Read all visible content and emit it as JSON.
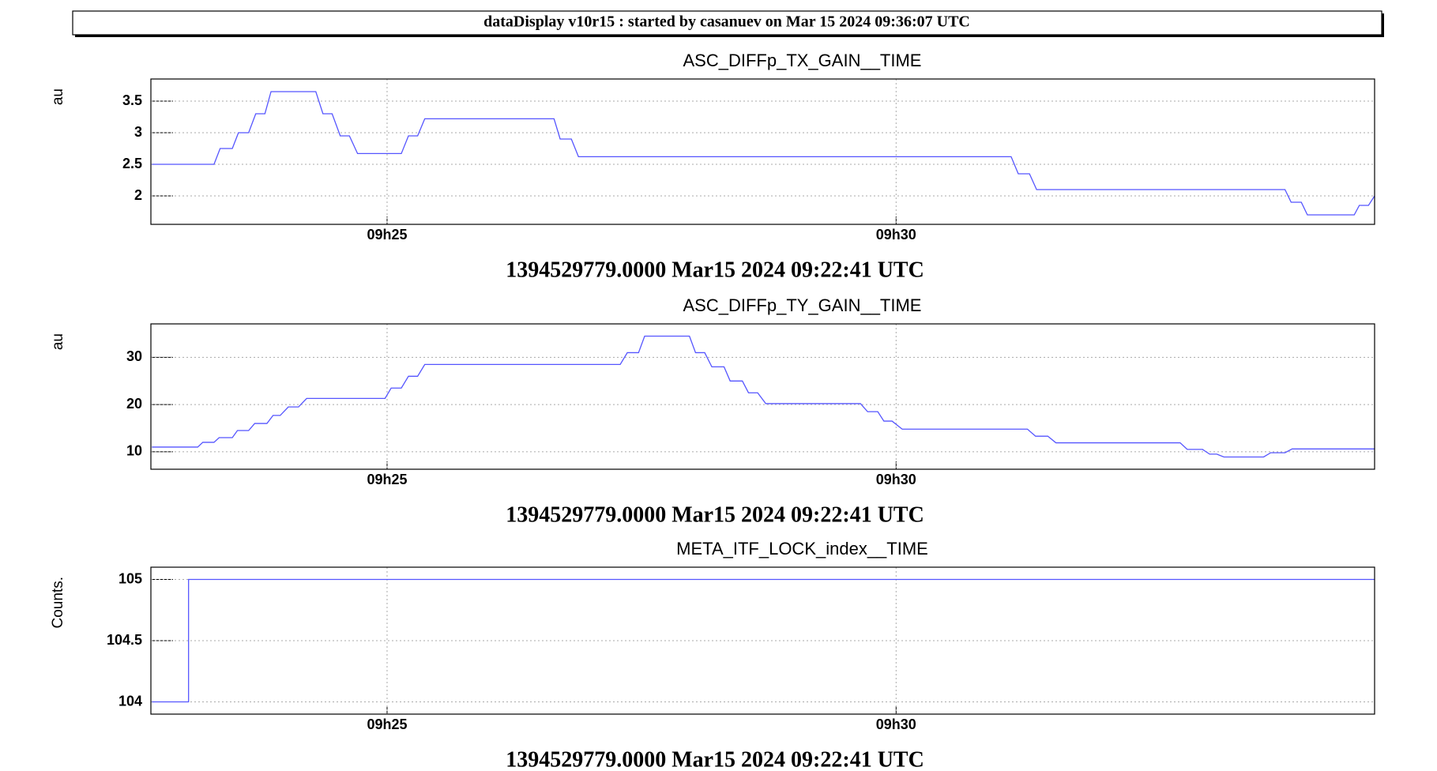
{
  "header": "dataDisplay v10r15 : started by casanuev on Mar 15 2024 09:36:07 UTC",
  "chart_data": [
    {
      "type": "line",
      "title": "ASC_DIFFp_TX_GAIN__TIME",
      "ylabel": "au",
      "xlabel": "1394529779.0000 Mar15 2024 09:22:41 UTC",
      "x": [
        22.69,
        23.3,
        23.36,
        23.48,
        23.54,
        23.64,
        23.71,
        23.8,
        23.86,
        24.3,
        24.37,
        24.46,
        24.54,
        24.63,
        24.71,
        25.14,
        25.21,
        25.3,
        25.37,
        26.64,
        26.7,
        26.81,
        26.88,
        31.13,
        31.2,
        31.31,
        31.38,
        33.82,
        33.88,
        33.98,
        34.04,
        34.5,
        34.55,
        34.64,
        34.7
      ],
      "series": [
        {
          "color": "#5555ff",
          "values": [
            2.5,
            2.5,
            2.75,
            2.75,
            3.0,
            3.0,
            3.3,
            3.3,
            3.65,
            3.65,
            3.3,
            3.3,
            2.95,
            2.95,
            2.67,
            2.67,
            2.95,
            2.95,
            3.22,
            3.22,
            2.9,
            2.9,
            2.62,
            2.62,
            2.35,
            2.35,
            2.1,
            2.1,
            1.9,
            1.9,
            1.7,
            1.7,
            1.85,
            1.85,
            2.0
          ]
        }
      ],
      "xlim": [
        22.68,
        34.7
      ],
      "ylim": [
        1.55,
        3.85
      ],
      "xticks": [
        {
          "value": 25,
          "label": "09h25"
        },
        {
          "value": 30,
          "label": "09h30"
        }
      ],
      "yticks": [
        2,
        2.5,
        3,
        3.5
      ],
      "grid": true
    },
    {
      "type": "line",
      "title": "ASC_DIFFp_TY_GAIN__TIME",
      "ylabel": "au",
      "xlabel": "1394529779.0000 Mar15 2024 09:22:41 UTC",
      "x": [
        22.69,
        23.14,
        23.19,
        23.3,
        23.35,
        23.48,
        23.53,
        23.64,
        23.7,
        23.82,
        23.88,
        23.95,
        24.03,
        24.13,
        24.21,
        24.98,
        25.04,
        25.14,
        25.21,
        25.3,
        25.37,
        27.29,
        27.36,
        27.47,
        27.53,
        27.97,
        28.03,
        28.12,
        28.19,
        28.31,
        28.37,
        28.49,
        28.55,
        28.64,
        28.72,
        29.65,
        29.72,
        29.82,
        29.88,
        29.96,
        30.06,
        31.29,
        31.37,
        31.49,
        31.57,
        32.79,
        32.86,
        33.01,
        33.08,
        33.15,
        33.22,
        33.61,
        33.68,
        33.82,
        33.89,
        34.7
      ],
      "series": [
        {
          "color": "#5555ff",
          "values": [
            11,
            11,
            12,
            12,
            13,
            13,
            14.5,
            14.5,
            16,
            16,
            17.7,
            17.7,
            19.5,
            19.5,
            21.3,
            21.3,
            23.5,
            23.5,
            26,
            26,
            28.5,
            28.5,
            31,
            31,
            34.5,
            34.5,
            31,
            31,
            28,
            28,
            25,
            25,
            22.5,
            22.5,
            20.2,
            20.2,
            18.5,
            18.5,
            16.5,
            16.5,
            14.8,
            14.8,
            13.3,
            13.3,
            11.9,
            11.9,
            10.5,
            10.5,
            9.5,
            9.5,
            8.9,
            8.9,
            9.8,
            9.8,
            10.6,
            10.6
          ]
        }
      ],
      "xlim": [
        22.68,
        34.7
      ],
      "ylim": [
        6.3,
        37.1
      ],
      "xticks": [
        {
          "value": 25,
          "label": "09h25"
        },
        {
          "value": 30,
          "label": "09h30"
        }
      ],
      "yticks": [
        10,
        20,
        30
      ],
      "grid": true
    },
    {
      "type": "line",
      "title": "META_ITF_LOCK_index__TIME",
      "ylabel": "Counts.",
      "xlabel": "1394529779.0000 Mar15 2024 09:22:41 UTC",
      "x": [
        22.69,
        23.05,
        23.05,
        34.7
      ],
      "series": [
        {
          "color": "#5555ff",
          "values": [
            104,
            104,
            105,
            105
          ]
        }
      ],
      "xlim": [
        22.68,
        34.7
      ],
      "ylim": [
        103.9,
        105.1
      ],
      "xticks": [
        {
          "value": 25,
          "label": "09h25"
        },
        {
          "value": 30,
          "label": "09h30"
        }
      ],
      "yticks": [
        104,
        104.5,
        105
      ],
      "grid": true
    }
  ]
}
